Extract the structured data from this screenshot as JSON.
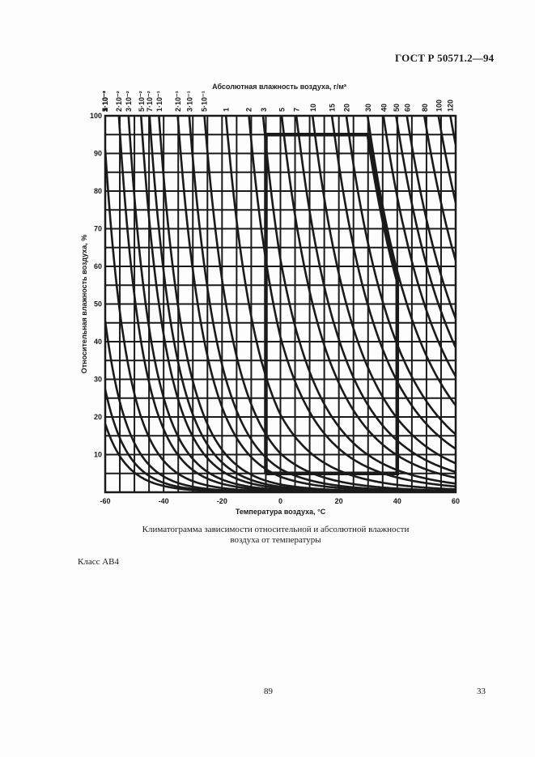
{
  "header": {
    "standard": "ГОСТ Р 50571.2—94"
  },
  "caption": {
    "line1": "Климатограмма зависимости относительной и абсолютной влажности",
    "line2": "воздуха от температуры"
  },
  "class_label": "Класс  АВ4",
  "footer": {
    "page_left": "89",
    "page_right": "33"
  },
  "chart_data": {
    "type": "line",
    "title": "Климатограмма зависимости относительной и абсолютной влажности воздуха от температуры",
    "xlabel": "Температура воздуха, °С",
    "ylabel": "Относительная влажность воздуха, %",
    "top_axis_label": "Абсолютная влажность воздуха, г/м³",
    "xlim": [
      -60,
      60
    ],
    "ylim": [
      0,
      100
    ],
    "x_ticks": [
      -60,
      -40,
      -20,
      0,
      20,
      40,
      60
    ],
    "y_ticks": [
      10,
      20,
      30,
      40,
      50,
      60,
      70,
      80,
      90,
      100
    ],
    "grid": {
      "x_step": 5,
      "y_step": 5,
      "on": true
    },
    "isolines_abs_humidity_g_m3": {
      "labels": [
        "2·10⁻³",
        "3·10⁻³",
        "5·10⁻³",
        "1·10⁻²",
        "2·10⁻²",
        "3·10⁻²",
        "5·10⁻²",
        "7·10⁻²",
        "1·10⁻¹",
        "2·10⁻¹",
        "3·10⁻¹",
        "5·10⁻¹",
        "1",
        "2",
        "3",
        "5",
        "7",
        "10",
        "15",
        "20",
        "30",
        "40",
        "50",
        "60",
        "80",
        "100",
        "120"
      ],
      "values": [
        0.002,
        0.003,
        0.005,
        0.01,
        0.02,
        0.03,
        0.05,
        0.07,
        0.1,
        0.2,
        0.3,
        0.5,
        1,
        2,
        3,
        5,
        7,
        10,
        15,
        20,
        30,
        40,
        50,
        60,
        80,
        100,
        120
      ]
    },
    "class_boundary": {
      "name": "AB4",
      "points_temp_rh": [
        [
          -5,
          5
        ],
        [
          -5,
          95
        ],
        [
          30,
          95
        ],
        [
          40,
          53
        ],
        [
          40,
          5
        ],
        [
          -5,
          5
        ]
      ],
      "description": "Temperature −5…+40 °C, relative humidity 5…95 %, absolute humidity 1…29 g/m³"
    }
  }
}
